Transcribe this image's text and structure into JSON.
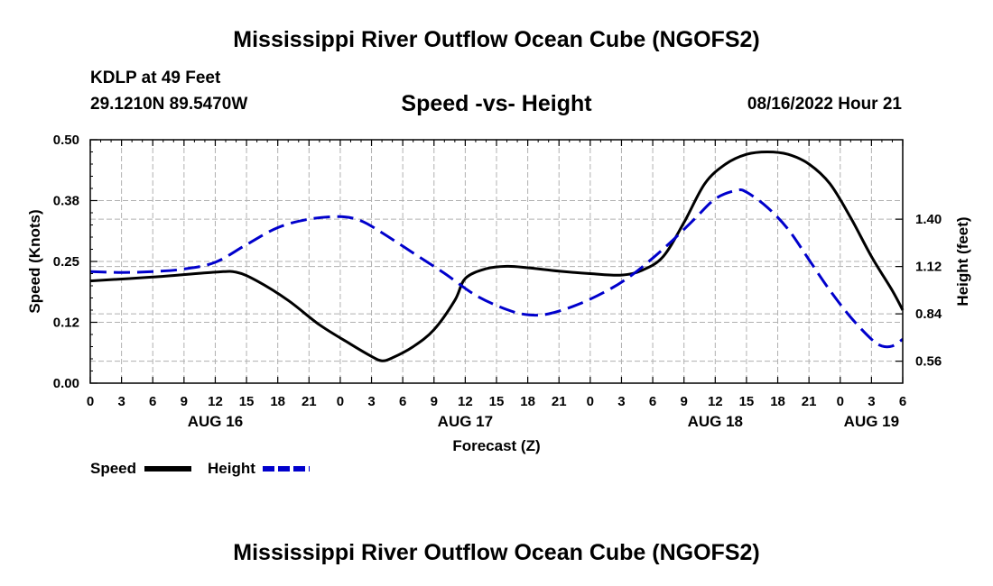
{
  "header": {
    "title": "Mississippi River Outflow Ocean Cube (NGOFS2)",
    "station": "KDLP at 49 Feet",
    "coordinates": "29.1210N  89.5470W",
    "subtitle": "Speed -vs- Height",
    "datetime": "08/16/2022 Hour 21"
  },
  "footer": {
    "title": "Mississippi River Outflow Ocean Cube (NGOFS2)"
  },
  "chart_data": {
    "type": "line",
    "title": "Speed -vs- Height",
    "xlabel": "Forecast (Z)",
    "ylabel_left": "Speed (Knots)",
    "ylabel_right": "Height (feet)",
    "x_unit": "hours since AUG 16 00Z",
    "xlim": [
      0,
      78
    ],
    "x_tick_values": [
      0,
      3,
      6,
      9,
      12,
      15,
      18,
      21,
      24,
      27,
      30,
      33,
      36,
      39,
      42,
      45,
      48,
      51,
      54,
      57,
      60,
      63,
      66,
      69,
      72,
      75,
      78
    ],
    "x_tick_labels": [
      "0",
      "3",
      "6",
      "9",
      "12",
      "15",
      "18",
      "21",
      "0",
      "3",
      "6",
      "9",
      "12",
      "15",
      "18",
      "21",
      "0",
      "3",
      "6",
      "9",
      "12",
      "15",
      "18",
      "21",
      "0",
      "3",
      "6"
    ],
    "date_labels": [
      {
        "label": "AUG 16",
        "hour": 12
      },
      {
        "label": "AUG 17",
        "hour": 36
      },
      {
        "label": "AUG 18",
        "hour": 60
      },
      {
        "label": "AUG 19",
        "hour": 75
      }
    ],
    "ylim_left": [
      0,
      0.5
    ],
    "y_ticks_left": [
      0.0,
      0.125,
      0.25,
      0.375,
      0.5
    ],
    "y_tick_labels_left": [
      "0.00",
      "0.12",
      "0.25",
      "0.38",
      "0.50"
    ],
    "ylim_right": [
      0.43,
      1.87
    ],
    "y_ticks_right": [
      0.56,
      0.84,
      1.12,
      1.4
    ],
    "y_tick_labels_right": [
      "0.56",
      "0.84",
      "1.12",
      "1.40"
    ],
    "grid": true,
    "series": [
      {
        "name": "Speed",
        "axis": "left",
        "color": "#000000",
        "style": "solid",
        "points": [
          [
            0,
            0.21
          ],
          [
            6,
            0.218
          ],
          [
            12,
            0.228
          ],
          [
            14,
            0.228
          ],
          [
            16,
            0.21
          ],
          [
            19,
            0.17
          ],
          [
            22,
            0.12
          ],
          [
            25,
            0.08
          ],
          [
            27,
            0.055
          ],
          [
            28,
            0.046
          ],
          [
            29,
            0.052
          ],
          [
            31,
            0.075
          ],
          [
            33,
            0.11
          ],
          [
            35,
            0.17
          ],
          [
            36,
            0.215
          ],
          [
            38,
            0.235
          ],
          [
            40,
            0.24
          ],
          [
            42,
            0.237
          ],
          [
            45,
            0.23
          ],
          [
            48,
            0.225
          ],
          [
            51,
            0.222
          ],
          [
            53,
            0.232
          ],
          [
            55,
            0.26
          ],
          [
            57,
            0.33
          ],
          [
            59,
            0.41
          ],
          [
            61,
            0.45
          ],
          [
            63,
            0.47
          ],
          [
            65,
            0.475
          ],
          [
            67,
            0.47
          ],
          [
            69,
            0.45
          ],
          [
            71,
            0.41
          ],
          [
            73,
            0.34
          ],
          [
            75,
            0.26
          ],
          [
            77,
            0.19
          ],
          [
            78,
            0.15
          ]
        ]
      },
      {
        "name": "Height",
        "axis": "right",
        "color": "#0000cc",
        "style": "dashed",
        "points": [
          [
            0,
            1.09
          ],
          [
            3,
            1.085
          ],
          [
            6,
            1.09
          ],
          [
            9,
            1.105
          ],
          [
            12,
            1.145
          ],
          [
            15,
            1.25
          ],
          [
            18,
            1.35
          ],
          [
            21,
            1.4
          ],
          [
            24,
            1.415
          ],
          [
            26,
            1.39
          ],
          [
            28,
            1.32
          ],
          [
            31,
            1.2
          ],
          [
            34,
            1.08
          ],
          [
            37,
            0.95
          ],
          [
            40,
            0.865
          ],
          [
            42,
            0.835
          ],
          [
            44,
            0.84
          ],
          [
            47,
            0.9
          ],
          [
            50,
            0.99
          ],
          [
            52,
            1.07
          ],
          [
            54,
            1.17
          ],
          [
            56,
            1.28
          ],
          [
            58,
            1.4
          ],
          [
            60,
            1.52
          ],
          [
            62,
            1.57
          ],
          [
            63,
            1.56
          ],
          [
            65,
            1.47
          ],
          [
            67,
            1.34
          ],
          [
            69,
            1.16
          ],
          [
            71,
            0.98
          ],
          [
            73,
            0.82
          ],
          [
            75,
            0.69
          ],
          [
            76,
            0.65
          ],
          [
            77,
            0.65
          ],
          [
            78,
            0.69
          ]
        ]
      }
    ],
    "legend": [
      {
        "label": "Speed",
        "style": "solid",
        "color": "#000000"
      },
      {
        "label": "Height",
        "style": "dashed",
        "color": "#0000cc"
      }
    ]
  }
}
